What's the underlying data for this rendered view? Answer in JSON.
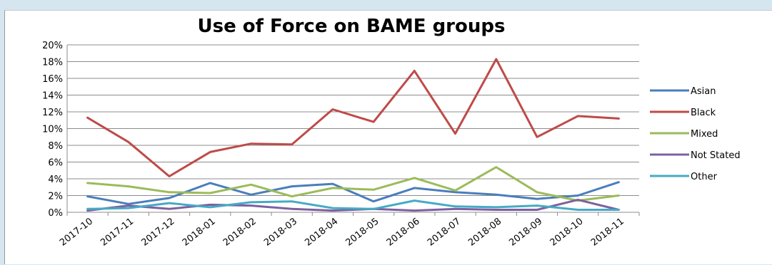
{
  "chart_data": {
    "type": "line",
    "title": "Use of Force on BAME groups",
    "xlabel": "",
    "ylabel": "",
    "x": [
      "2017-10",
      "2017-11",
      "2017-12",
      "2018-01",
      "2018-02",
      "2018-03",
      "2018-04",
      "2018-05",
      "2018-06",
      "2018-07",
      "2018-08",
      "2018-09",
      "2018-10",
      "2018-11"
    ],
    "ylim": [
      0,
      20
    ],
    "yticks": [
      "0%",
      "2%",
      "4%",
      "6%",
      "8%",
      "10%",
      "12%",
      "14%",
      "16%",
      "18%",
      "20%"
    ],
    "grid": true,
    "legend": "right",
    "series": [
      {
        "name": "Asian",
        "color": "#4a7ebb",
        "values": [
          1.9,
          1.0,
          1.7,
          3.5,
          2.1,
          3.1,
          3.4,
          1.3,
          2.9,
          2.4,
          2.1,
          1.6,
          2.0,
          3.6
        ]
      },
      {
        "name": "Black",
        "color": "#be4b48",
        "values": [
          11.3,
          8.4,
          4.3,
          7.2,
          8.2,
          8.1,
          12.3,
          10.8,
          16.9,
          9.4,
          18.3,
          9.0,
          11.5,
          11.2
        ]
      },
      {
        "name": "Mixed",
        "color": "#9bbb59",
        "values": [
          3.5,
          3.1,
          2.4,
          2.3,
          3.3,
          1.9,
          2.9,
          2.7,
          4.1,
          2.6,
          5.4,
          2.4,
          1.4,
          2.0
        ]
      },
      {
        "name": "Not Stated",
        "color": "#7d60a0",
        "values": [
          0.2,
          0.8,
          0.4,
          0.9,
          0.8,
          0.4,
          0.2,
          0.4,
          0.2,
          0.4,
          0.3,
          0.3,
          1.5,
          0.3
        ]
      },
      {
        "name": "Other",
        "color": "#46aac5",
        "values": [
          0.4,
          0.5,
          1.1,
          0.6,
          1.2,
          1.3,
          0.5,
          0.4,
          1.4,
          0.7,
          0.6,
          0.8,
          0.3,
          0.3
        ]
      }
    ]
  }
}
